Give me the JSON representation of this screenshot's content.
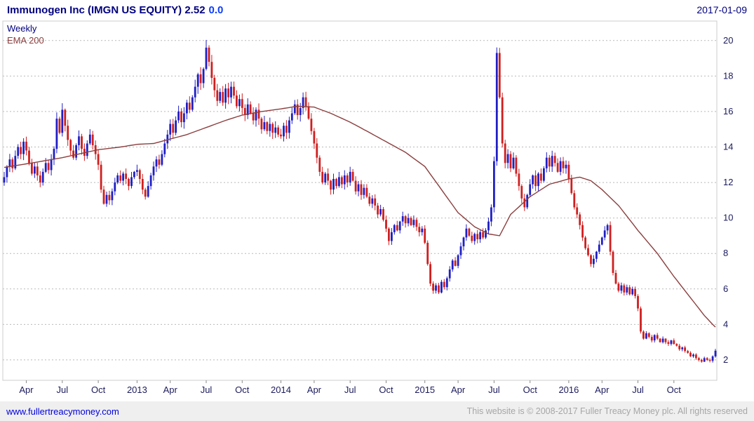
{
  "header": {
    "title_main": "Immunogen Inc (IMGN US EQUITY) 2.52",
    "change": "0.0",
    "date": "2017-01-09"
  },
  "legend": {
    "timeframe": "Weekly",
    "indicator": "EMA 200"
  },
  "footer": {
    "site": "www.fullertreacymoney.com",
    "copyright": "This website is © 2008-2017 Fuller Treacy Money plc. All rights reserved"
  },
  "colors": {
    "up": "#1f1fc4",
    "down": "#cf1f1f",
    "ema": "#8b3e3e",
    "grid": "#b9b9b9",
    "frame": "#cccccc",
    "axis_text": "#1b1b5e",
    "title": "#000080",
    "change": "#0a3cff",
    "link": "#0000dd",
    "copyright": "#a6a6a6",
    "footer_bg": "#efefef"
  },
  "chart_data": {
    "type": "candlestick",
    "title": "Immunogen Inc (IMGN US EQUITY)",
    "symbol": "IMGN US EQUITY",
    "timeframe": "Weekly",
    "overlay": "EMA 200",
    "last_price": 2.52,
    "change": 0.0,
    "as_of": "2017-01-09",
    "xlabel": "",
    "ylabel": "",
    "grid": "horizontal-dashed",
    "ylim": [
      0.85,
      21.1
    ],
    "yticks": [
      2,
      4,
      6,
      8,
      10,
      12,
      14,
      16,
      18,
      20
    ],
    "x_start": "2012-02",
    "x_end": "2017-01",
    "xticks": [
      {
        "label": "Apr",
        "week": 8
      },
      {
        "label": "Jul",
        "week": 21
      },
      {
        "label": "Oct",
        "week": 34
      },
      {
        "label": "2013",
        "week": 48
      },
      {
        "label": "Apr",
        "week": 60
      },
      {
        "label": "Jul",
        "week": 73
      },
      {
        "label": "Oct",
        "week": 86
      },
      {
        "label": "2014",
        "week": 100
      },
      {
        "label": "Apr",
        "week": 112
      },
      {
        "label": "Jul",
        "week": 125
      },
      {
        "label": "Oct",
        "week": 138
      },
      {
        "label": "2015",
        "week": 152
      },
      {
        "label": "Apr",
        "week": 164
      },
      {
        "label": "Jul",
        "week": 177
      },
      {
        "label": "Oct",
        "week": 190
      },
      {
        "label": "2016",
        "week": 204
      },
      {
        "label": "Apr",
        "week": 216
      },
      {
        "label": "Jul",
        "week": 229
      },
      {
        "label": "Oct",
        "week": 242
      }
    ],
    "open_first": 12.0,
    "weekly_closes": [
      12.3,
      12.9,
      13.3,
      12.8,
      13.5,
      14.0,
      13.6,
      14.3,
      13.8,
      13.1,
      12.5,
      12.9,
      12.4,
      12.0,
      12.6,
      13.1,
      12.7,
      13.3,
      13.9,
      15.6,
      14.8,
      16.1,
      15.2,
      14.4,
      13.8,
      13.4,
      14.1,
      14.6,
      13.9,
      13.5,
      14.2,
      14.7,
      14.1,
      13.6,
      13.0,
      11.6,
      10.8,
      11.3,
      11.0,
      11.5,
      12.0,
      12.4,
      12.1,
      12.5,
      12.2,
      11.8,
      12.3,
      12.6,
      12.7,
      12.2,
      11.6,
      11.2,
      11.8,
      12.4,
      12.9,
      13.3,
      13.0,
      13.6,
      14.2,
      14.7,
      15.3,
      14.8,
      15.5,
      16.0,
      15.4,
      15.9,
      16.5,
      16.1,
      16.8,
      17.4,
      18.1,
      17.6,
      18.4,
      19.6,
      18.8,
      17.9,
      17.2,
      16.6,
      17.1,
      16.5,
      17.3,
      16.8,
      17.4,
      16.9,
      16.3,
      16.7,
      16.2,
      15.8,
      16.4,
      15.9,
      15.5,
      16.1,
      15.6,
      15.0,
      15.4,
      14.9,
      15.3,
      14.8,
      15.1,
      14.7,
      14.6,
      15.2,
      14.8,
      15.5,
      15.9,
      16.4,
      15.8,
      16.2,
      16.8,
      16.3,
      15.6,
      14.9,
      14.2,
      13.4,
      12.6,
      12.0,
      12.5,
      12.1,
      11.6,
      12.2,
      11.8,
      12.3,
      11.9,
      12.4,
      12.0,
      12.6,
      12.1,
      11.5,
      11.9,
      11.3,
      11.7,
      11.2,
      10.8,
      11.1,
      10.7,
      10.2,
      10.5,
      9.9,
      9.4,
      8.7,
      9.2,
      9.6,
      9.3,
      9.8,
      10.1,
      9.7,
      10.0,
      9.6,
      9.9,
      9.5,
      9.2,
      9.4,
      8.6,
      7.4,
      6.3,
      5.9,
      6.2,
      5.8,
      6.4,
      6.1,
      6.6,
      7.1,
      7.6,
      7.3,
      7.9,
      8.4,
      8.9,
      9.4,
      9.0,
      8.7,
      9.1,
      8.8,
      9.2,
      8.9,
      9.3,
      9.8,
      10.6,
      13.2,
      19.3,
      16.8,
      14.2,
      13.1,
      13.6,
      12.8,
      13.4,
      12.5,
      11.8,
      11.1,
      10.6,
      11.3,
      11.9,
      12.4,
      11.8,
      12.5,
      12.1,
      12.8,
      13.4,
      12.9,
      13.5,
      13.1,
      12.6,
      13.2,
      12.8,
      13.0,
      12.2,
      11.4,
      10.6,
      10.2,
      9.6,
      8.9,
      8.3,
      7.9,
      7.4,
      7.7,
      8.1,
      8.5,
      8.9,
      9.3,
      9.6,
      8.1,
      6.9,
      6.3,
      5.9,
      6.2,
      5.8,
      6.1,
      5.7,
      6.0,
      5.6,
      4.9,
      3.6,
      3.2,
      3.5,
      3.3,
      3.1,
      3.4,
      3.2,
      3.0,
      3.2,
      3.0,
      2.9,
      3.1,
      2.9,
      2.8,
      2.6,
      2.7,
      2.5,
      2.4,
      2.2,
      2.3,
      2.1,
      2.0,
      1.9,
      2.1,
      2.0,
      1.95,
      2.2,
      2.52
    ],
    "ema200_anchors": [
      [
        0,
        12.85
      ],
      [
        10,
        13.1
      ],
      [
        21,
        13.4
      ],
      [
        34,
        13.85
      ],
      [
        42,
        14.0
      ],
      [
        48,
        14.15
      ],
      [
        54,
        14.2
      ],
      [
        60,
        14.45
      ],
      [
        66,
        14.7
      ],
      [
        73,
        15.1
      ],
      [
        80,
        15.5
      ],
      [
        86,
        15.8
      ],
      [
        93,
        16.0
      ],
      [
        100,
        16.15
      ],
      [
        106,
        16.3
      ],
      [
        112,
        16.25
      ],
      [
        118,
        15.9
      ],
      [
        125,
        15.4
      ],
      [
        131,
        14.9
      ],
      [
        138,
        14.3
      ],
      [
        145,
        13.7
      ],
      [
        152,
        12.9
      ],
      [
        158,
        11.6
      ],
      [
        164,
        10.3
      ],
      [
        170,
        9.5
      ],
      [
        175,
        9.1
      ],
      [
        179,
        9.0
      ],
      [
        183,
        10.2
      ],
      [
        190,
        11.2
      ],
      [
        197,
        11.9
      ],
      [
        204,
        12.2
      ],
      [
        208,
        12.3
      ],
      [
        212,
        12.1
      ],
      [
        216,
        11.6
      ],
      [
        222,
        10.7
      ],
      [
        229,
        9.3
      ],
      [
        236,
        8.0
      ],
      [
        242,
        6.7
      ],
      [
        248,
        5.5
      ],
      [
        253,
        4.5
      ],
      [
        256,
        4.0
      ],
      [
        257,
        3.85
      ]
    ]
  }
}
